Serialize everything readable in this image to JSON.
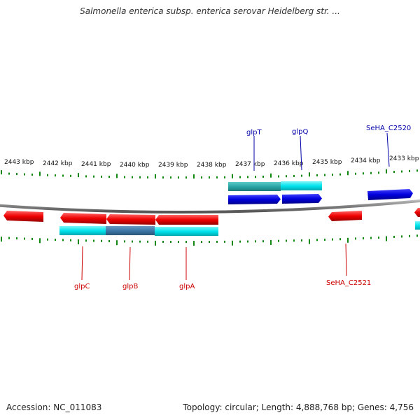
{
  "title": "Salmonella enterica subsp. enterica serovar Heidelberg str. ...",
  "footer": {
    "accession": "Accession: NC_011083",
    "topology": "Topology: circular; Length: 4,888,768 bp; Genes: 4,756"
  },
  "colors": {
    "forward_gene": "#0000dd",
    "reverse_gene": "#ee0000",
    "operon": "#00e5ee",
    "operon_dark": "#2aa6a6",
    "operon_mid": "#3d78a8",
    "tick": "#118811",
    "backbone": "#808080",
    "forward_label": "#0000aa",
    "reverse_label": "#cc0000"
  },
  "kbp_labels": [
    "2443 kbp",
    "2442 kbp",
    "2441 kbp",
    "2440 kbp",
    "2439 kbp",
    "2438 kbp",
    "2437 kbp",
    "2436 kbp",
    "2435 kbp",
    "2434 kbp",
    "2433 kbp"
  ],
  "gene_labels": {
    "glpT": "glpT",
    "glpQ": "glpQ",
    "SeHA_C2520": "SeHA_C2520",
    "glpC": "glpC",
    "glpB": "glpB",
    "glpA": "glpA",
    "SeHA_C2521": "SeHA_C2521"
  }
}
